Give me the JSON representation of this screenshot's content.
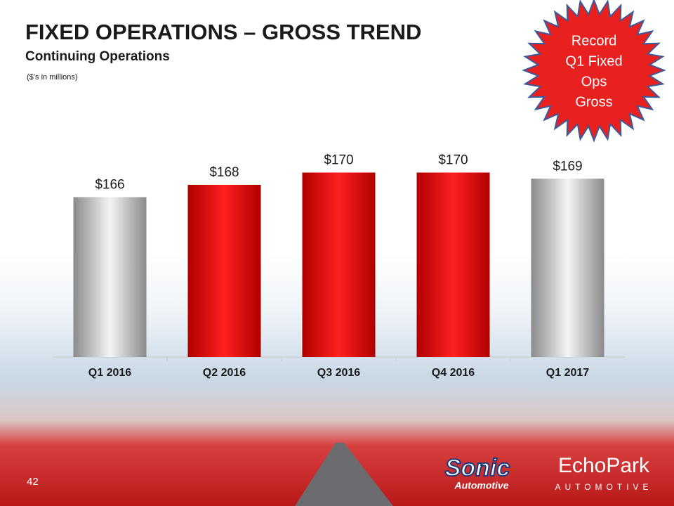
{
  "chart_data": {
    "type": "bar",
    "title": "FIXED OPERATIONS – GROSS TREND",
    "subtitle": "Continuing Operations",
    "unit_note": "($’s in millions)",
    "badge": [
      "Record",
      "Q1 Fixed",
      "Ops",
      "Gross"
    ],
    "categories": [
      "Q1 2016",
      "Q2 2016",
      "Q3 2016",
      "Q4 2016",
      "Q1 2017"
    ],
    "values": [
      166,
      168,
      170,
      170,
      169
    ],
    "value_labels": [
      "$166",
      "$168",
      "$170",
      "$170",
      "$169"
    ],
    "colors": [
      "#b0b0b0",
      "#e00000",
      "#e00000",
      "#e00000",
      "#b0b0b0"
    ],
    "ylim": [
      140,
      172
    ]
  },
  "footer": {
    "page_number": "42",
    "logo_left": [
      "Sonic",
      "Automotive"
    ],
    "logo_right": [
      "EchoPark",
      "AUTOMOTIVE"
    ]
  }
}
